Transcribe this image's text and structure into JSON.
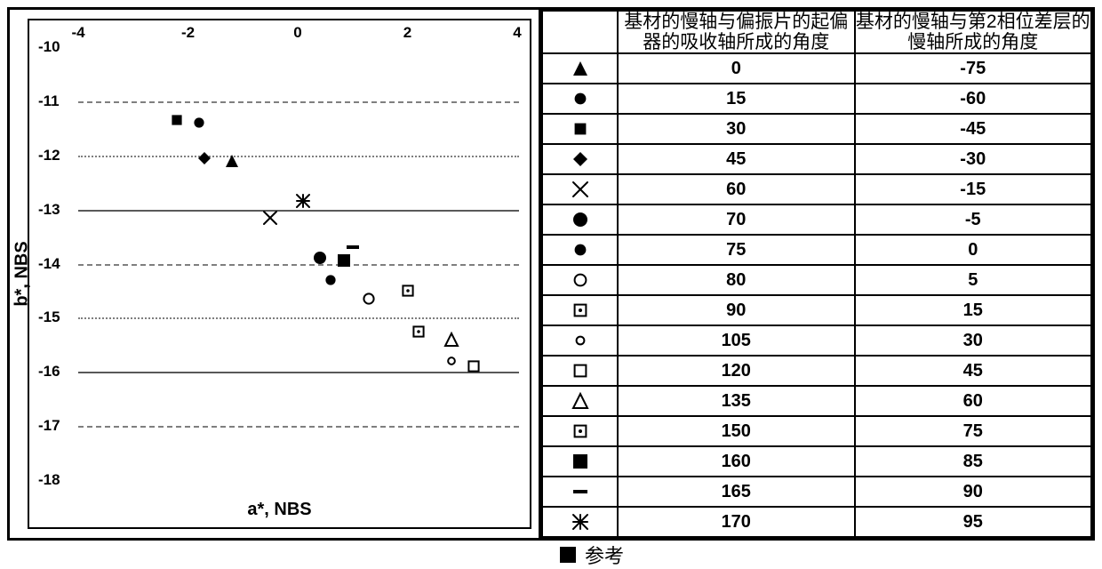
{
  "chart": {
    "type": "scatter",
    "xlabel": "a*, NBS",
    "ylabel": "b*, NBS",
    "label_fontsize": 20,
    "tick_fontsize": 17,
    "xlim": [
      -4,
      4
    ],
    "ylim": [
      -18,
      -10
    ],
    "xticks": [
      -4,
      -2,
      0,
      2,
      4
    ],
    "yticks": [
      -10,
      -11,
      -12,
      -13,
      -14,
      -15,
      -16,
      -17,
      -18
    ],
    "background_color": "#ffffff",
    "border_color": "#000000",
    "grid_color_major": "#595959",
    "grid_color_minor": "#7f7f7f",
    "gridlines": [
      {
        "y": -11,
        "style": "dash"
      },
      {
        "y": -12,
        "style": "dot"
      },
      {
        "y": -13,
        "style": "solid"
      },
      {
        "y": -14,
        "style": "dash"
      },
      {
        "y": -15,
        "style": "dot"
      },
      {
        "y": -16,
        "style": "solid"
      },
      {
        "y": -17,
        "style": "dash"
      }
    ],
    "marker_color": "#000000",
    "marker_size": 14,
    "points": [
      {
        "x": -1.2,
        "y": -12.1,
        "marker": "triangle-up-filled"
      },
      {
        "x": -1.8,
        "y": -11.4,
        "marker": "circle-filled"
      },
      {
        "x": -2.2,
        "y": -11.35,
        "marker": "square-filled"
      },
      {
        "x": -1.7,
        "y": -12.05,
        "marker": "diamond-filled"
      },
      {
        "x": -0.5,
        "y": -13.15,
        "marker": "x"
      },
      {
        "x": 0.4,
        "y": -13.9,
        "marker": "circle-filled-lg"
      },
      {
        "x": 0.6,
        "y": -14.3,
        "marker": "circle-filled"
      },
      {
        "x": 1.3,
        "y": -14.65,
        "marker": "circle-open"
      },
      {
        "x": 2.0,
        "y": -14.5,
        "marker": "square-dot"
      },
      {
        "x": 2.8,
        "y": -15.8,
        "marker": "circle-open-sm"
      },
      {
        "x": 3.2,
        "y": -15.9,
        "marker": "square-open"
      },
      {
        "x": 2.8,
        "y": -15.4,
        "marker": "triangle-up-open"
      },
      {
        "x": 2.2,
        "y": -15.25,
        "marker": "square-dot"
      },
      {
        "x": 0.85,
        "y": -13.95,
        "marker": "square-filled-lg"
      },
      {
        "x": 1.0,
        "y": -13.7,
        "marker": "minus"
      },
      {
        "x": 0.1,
        "y": -12.85,
        "marker": "asterisk"
      }
    ]
  },
  "table": {
    "headers": {
      "symbol": "",
      "col1": "基材的慢轴与偏振片的起偏器的吸收轴所成的角度",
      "col2": "基材的慢轴与第2相位差层的慢轴所成的角度"
    },
    "header_fontsize": 21,
    "cell_fontsize": 20,
    "border_color": "#000000",
    "rows": [
      {
        "marker": "triangle-up-filled",
        "c1": "0",
        "c2": "-75"
      },
      {
        "marker": "circle-filled",
        "c1": "15",
        "c2": "-60"
      },
      {
        "marker": "square-filled",
        "c1": "30",
        "c2": "-45"
      },
      {
        "marker": "diamond-filled",
        "c1": "45",
        "c2": "-30"
      },
      {
        "marker": "x",
        "c1": "60",
        "c2": "-15"
      },
      {
        "marker": "circle-filled-lg",
        "c1": "70",
        "c2": "-5"
      },
      {
        "marker": "circle-filled",
        "c1": "75",
        "c2": "0"
      },
      {
        "marker": "circle-open",
        "c1": "80",
        "c2": "5"
      },
      {
        "marker": "square-dot",
        "c1": "90",
        "c2": "15"
      },
      {
        "marker": "circle-open-sm",
        "c1": "105",
        "c2": "30"
      },
      {
        "marker": "square-open",
        "c1": "120",
        "c2": "45"
      },
      {
        "marker": "triangle-up-open",
        "c1": "135",
        "c2": "60"
      },
      {
        "marker": "square-dot",
        "c1": "150",
        "c2": "75"
      },
      {
        "marker": "square-filled-lg",
        "c1": "160",
        "c2": "85"
      },
      {
        "marker": "minus",
        "c1": "165",
        "c2": "90"
      },
      {
        "marker": "asterisk",
        "c1": "170",
        "c2": "95"
      }
    ]
  },
  "reference_label": "参考"
}
